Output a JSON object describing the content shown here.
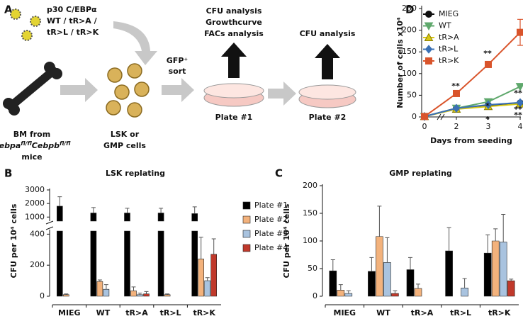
{
  "diagram": {
    "label": "A",
    "construct": [
      "p30 C/EBPα",
      "WT / tR>A /",
      "tR>L / tR>K"
    ],
    "source": {
      "line1": "BM from",
      "gene1": "Cebpa",
      "sup1": "fl/fl",
      "gene2": "Cebpb",
      "sup2": "fl/fl",
      "line3": "mice"
    },
    "cells": [
      "LSK or",
      "GMP cells"
    ],
    "sort": [
      "GFP⁺",
      "sort"
    ],
    "plate1": {
      "name": "Plate #1",
      "analyses": [
        "CFU analysis",
        "Growthcurve",
        "FACs analysis"
      ]
    },
    "plate2": {
      "name": "Plate #2",
      "analyses": [
        "CFU analysis"
      ]
    }
  },
  "chart_data": [
    {
      "label": "D",
      "type": "line",
      "xlabel": "Days from seeding",
      "ylabel": "Number of cells x10⁴",
      "x": [
        0,
        2,
        3,
        4
      ],
      "xticks": [
        0,
        2,
        3,
        4
      ],
      "axis_break": [
        0,
        2
      ],
      "ylim": [
        0,
        250
      ],
      "yticks": [
        0,
        50,
        100,
        150,
        200,
        250
      ],
      "legend": "upper left",
      "series": [
        {
          "name": "MIEG",
          "color": "#111111",
          "marker": "circle",
          "values": [
            1,
            20,
            27,
            32
          ]
        },
        {
          "name": "WT",
          "color": "#5fa86c",
          "marker": "triangle-down",
          "values": [
            1,
            20,
            35,
            70
          ]
        },
        {
          "name": "tR>A",
          "color": "#d8c716",
          "marker": "triangle-up",
          "values": [
            1,
            18,
            24,
            30
          ]
        },
        {
          "name": "tR>L",
          "color": "#3a70b5",
          "marker": "diamond",
          "values": [
            1,
            20,
            28,
            33
          ]
        },
        {
          "name": "tR>K",
          "color": "#d9542b",
          "marker": "square",
          "values": [
            1,
            54,
            121,
            195
          ],
          "errors": [
            null,
            null,
            null,
            30
          ]
        }
      ],
      "annotations": [
        {
          "text": "**",
          "color": "#a0522d"
        },
        {
          "text": "**",
          "color": "#d9542b"
        },
        {
          "text": "*",
          "color": "#3a70b5"
        },
        {
          "text": "*",
          "color": "#d8a016"
        },
        {
          "text": "**",
          "color": "#3a70b5"
        },
        {
          "text": "**",
          "color": "#d8a016"
        },
        {
          "text": "**",
          "color": "#111111"
        }
      ]
    },
    {
      "label": "B",
      "type": "bar",
      "title": "LSK replating",
      "ylabel": "CFU per 10⁴ cells",
      "categories": [
        "MIEG",
        "WT",
        "tR>A",
        "tR>L",
        "tR>K"
      ],
      "y_segments": [
        {
          "ylim": [
            0,
            420
          ],
          "yticks": [
            0,
            200,
            400
          ]
        },
        {
          "ylim": [
            700,
            3000
          ],
          "yticks": [
            1000,
            2000,
            3000
          ]
        }
      ],
      "legend": "right",
      "series": [
        {
          "name": "Plate #1",
          "color": "#000000",
          "values": [
            1800,
            1300,
            1300,
            1300,
            1250
          ],
          "errors": [
            700,
            400,
            350,
            350,
            500
          ]
        },
        {
          "name": "Plate #2",
          "color": "#f3b27c",
          "values": [
            10,
            95,
            35,
            10,
            240
          ],
          "errors": [
            5,
            10,
            25,
            5,
            140
          ]
        },
        {
          "name": "Plate #3",
          "color": "#a9c3df",
          "values": [
            null,
            45,
            10,
            null,
            100
          ],
          "errors": [
            null,
            30,
            10,
            null,
            20
          ]
        },
        {
          "name": "Plate #4",
          "color": "#c0392b",
          "values": [
            null,
            null,
            15,
            null,
            270
          ],
          "errors": [
            null,
            null,
            15,
            null,
            100
          ]
        }
      ]
    },
    {
      "label": "C",
      "type": "bar",
      "title": "GMP replating",
      "ylabel": "CFU per 10⁴ cells",
      "categories": [
        "MIEG",
        "WT",
        "tR>A",
        "tR>L",
        "tR>K"
      ],
      "ylim": [
        0,
        200
      ],
      "yticks": [
        0,
        50,
        100,
        150,
        200
      ],
      "series": [
        {
          "name": "Plate #1",
          "color": "#000000",
          "values": [
            46,
            45,
            48,
            82,
            78
          ],
          "errors": [
            20,
            25,
            22,
            42,
            33
          ]
        },
        {
          "name": "Plate #2",
          "color": "#f3b27c",
          "values": [
            11,
            108,
            14,
            null,
            100
          ],
          "errors": [
            10,
            55,
            8,
            null,
            22
          ]
        },
        {
          "name": "Plate #3",
          "color": "#a9c3df",
          "values": [
            5,
            61,
            null,
            15,
            98
          ],
          "errors": [
            5,
            45,
            null,
            17,
            50
          ]
        },
        {
          "name": "Plate #4",
          "color": "#c0392b",
          "values": [
            null,
            5,
            null,
            null,
            28
          ],
          "errors": [
            null,
            5,
            null,
            null,
            3
          ]
        }
      ]
    }
  ]
}
